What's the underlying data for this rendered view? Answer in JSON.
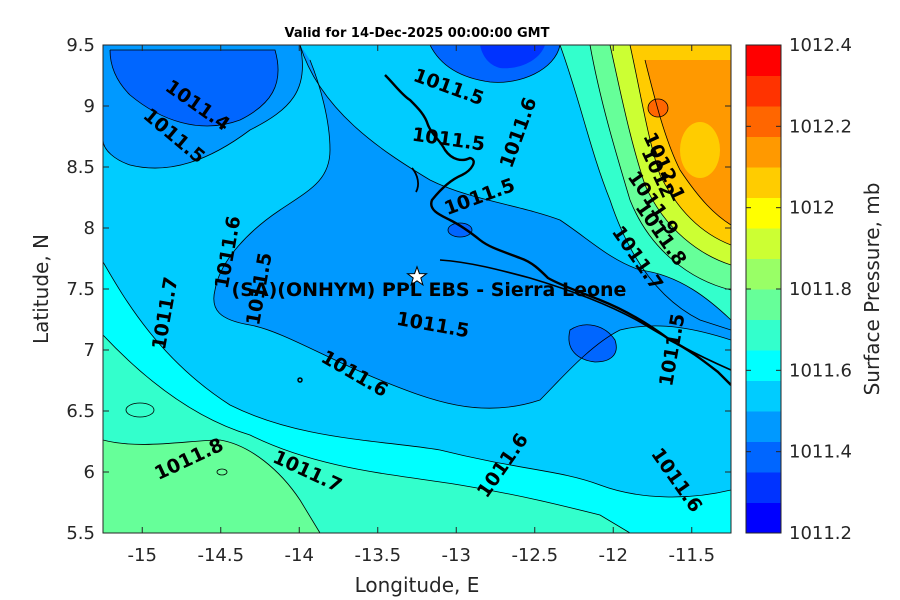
{
  "chart_data": {
    "type": "contour",
    "title": "Valid for 14-Dec-2025 00:00:00 GMT",
    "xlabel": "Longitude, E",
    "ylabel": "Latitude, N",
    "xlim": [
      -15.25,
      -11.25
    ],
    "ylim": [
      5.5,
      9.5
    ],
    "xticks": [
      -15,
      -14.5,
      -14,
      -13.5,
      -13,
      -12.5,
      -12,
      -11.5
    ],
    "xtick_labels": [
      "-15",
      "-14.5",
      "-14",
      "-13.5",
      "-13",
      "-12.5",
      "-12",
      "-11.5"
    ],
    "yticks": [
      5.5,
      6,
      6.5,
      7,
      7.5,
      8,
      8.5,
      9,
      9.5
    ],
    "ytick_labels": [
      "5.5",
      "6",
      "6.5",
      "7",
      "7.5",
      "8",
      "8.5",
      "9",
      "9.5"
    ],
    "colorbar": {
      "label": "Surface Pressure, mb",
      "min": 1011.2,
      "max": 1012.4,
      "step": 0.05,
      "tick_values": [
        1011.2,
        1011.4,
        1011.6,
        1011.8,
        1012,
        1012.2,
        1012.4
      ],
      "tick_labels": [
        "1011.2",
        "1011.4",
        "1011.6",
        "1011.8",
        "1012",
        "1012.2",
        "1012.4"
      ],
      "colors": [
        "#0000ff",
        "#0033ff",
        "#0066ff",
        "#0099ff",
        "#00ccff",
        "#00ffff",
        "#33ffcc",
        "#66ff99",
        "#99ff66",
        "#ccff33",
        "#ffff00",
        "#ffcc00",
        "#ff9900",
        "#ff6600",
        "#ff3300",
        "#ff0000"
      ]
    },
    "contour_labels": [
      {
        "text": "1011.5",
        "lon": -13.05,
        "lat": 9.15
      },
      {
        "text": "1011.4",
        "lon": -14.65,
        "lat": 9.0
      },
      {
        "text": "1011.5",
        "lon": -14.8,
        "lat": 8.75
      },
      {
        "text": "1011.5",
        "lon": -13.05,
        "lat": 8.72
      },
      {
        "text": "1011.6",
        "lon": -12.6,
        "lat": 8.78
      },
      {
        "text": "1011.5",
        "lon": -12.85,
        "lat": 8.25
      },
      {
        "text": "1011.6",
        "lon": -14.45,
        "lat": 7.8
      },
      {
        "text": "1011.5",
        "lon": -14.25,
        "lat": 7.5
      },
      {
        "text": "1011.7",
        "lon": -14.85,
        "lat": 7.3
      },
      {
        "text": "1011.5",
        "lon": -13.15,
        "lat": 7.2
      },
      {
        "text": "1011.6",
        "lon": -13.65,
        "lat": 6.8
      },
      {
        "text": "1011.7",
        "lon": -13.95,
        "lat": 6.0
      },
      {
        "text": "1011.8",
        "lon": -14.7,
        "lat": 6.1
      },
      {
        "text": "1011.6",
        "lon": -12.7,
        "lat": 6.05
      },
      {
        "text": "1011.6",
        "lon": -11.6,
        "lat": 5.93
      },
      {
        "text": "1011.5",
        "lon": -11.62,
        "lat": 7.0
      },
      {
        "text": "1011.7",
        "lon": -11.85,
        "lat": 7.75
      },
      {
        "text": "1011.8",
        "lon": -11.7,
        "lat": 7.95
      },
      {
        "text": "1011.9",
        "lon": -11.75,
        "lat": 8.2
      },
      {
        "text": "1012",
        "lon": -11.72,
        "lat": 8.45
      },
      {
        "text": "1012.1",
        "lon": -11.68,
        "lat": 8.5
      }
    ],
    "site": {
      "name": "(SA)(ONHYM) PPL EBS  - Sierra Leone",
      "lon": -13.25,
      "lat": 7.6
    }
  }
}
